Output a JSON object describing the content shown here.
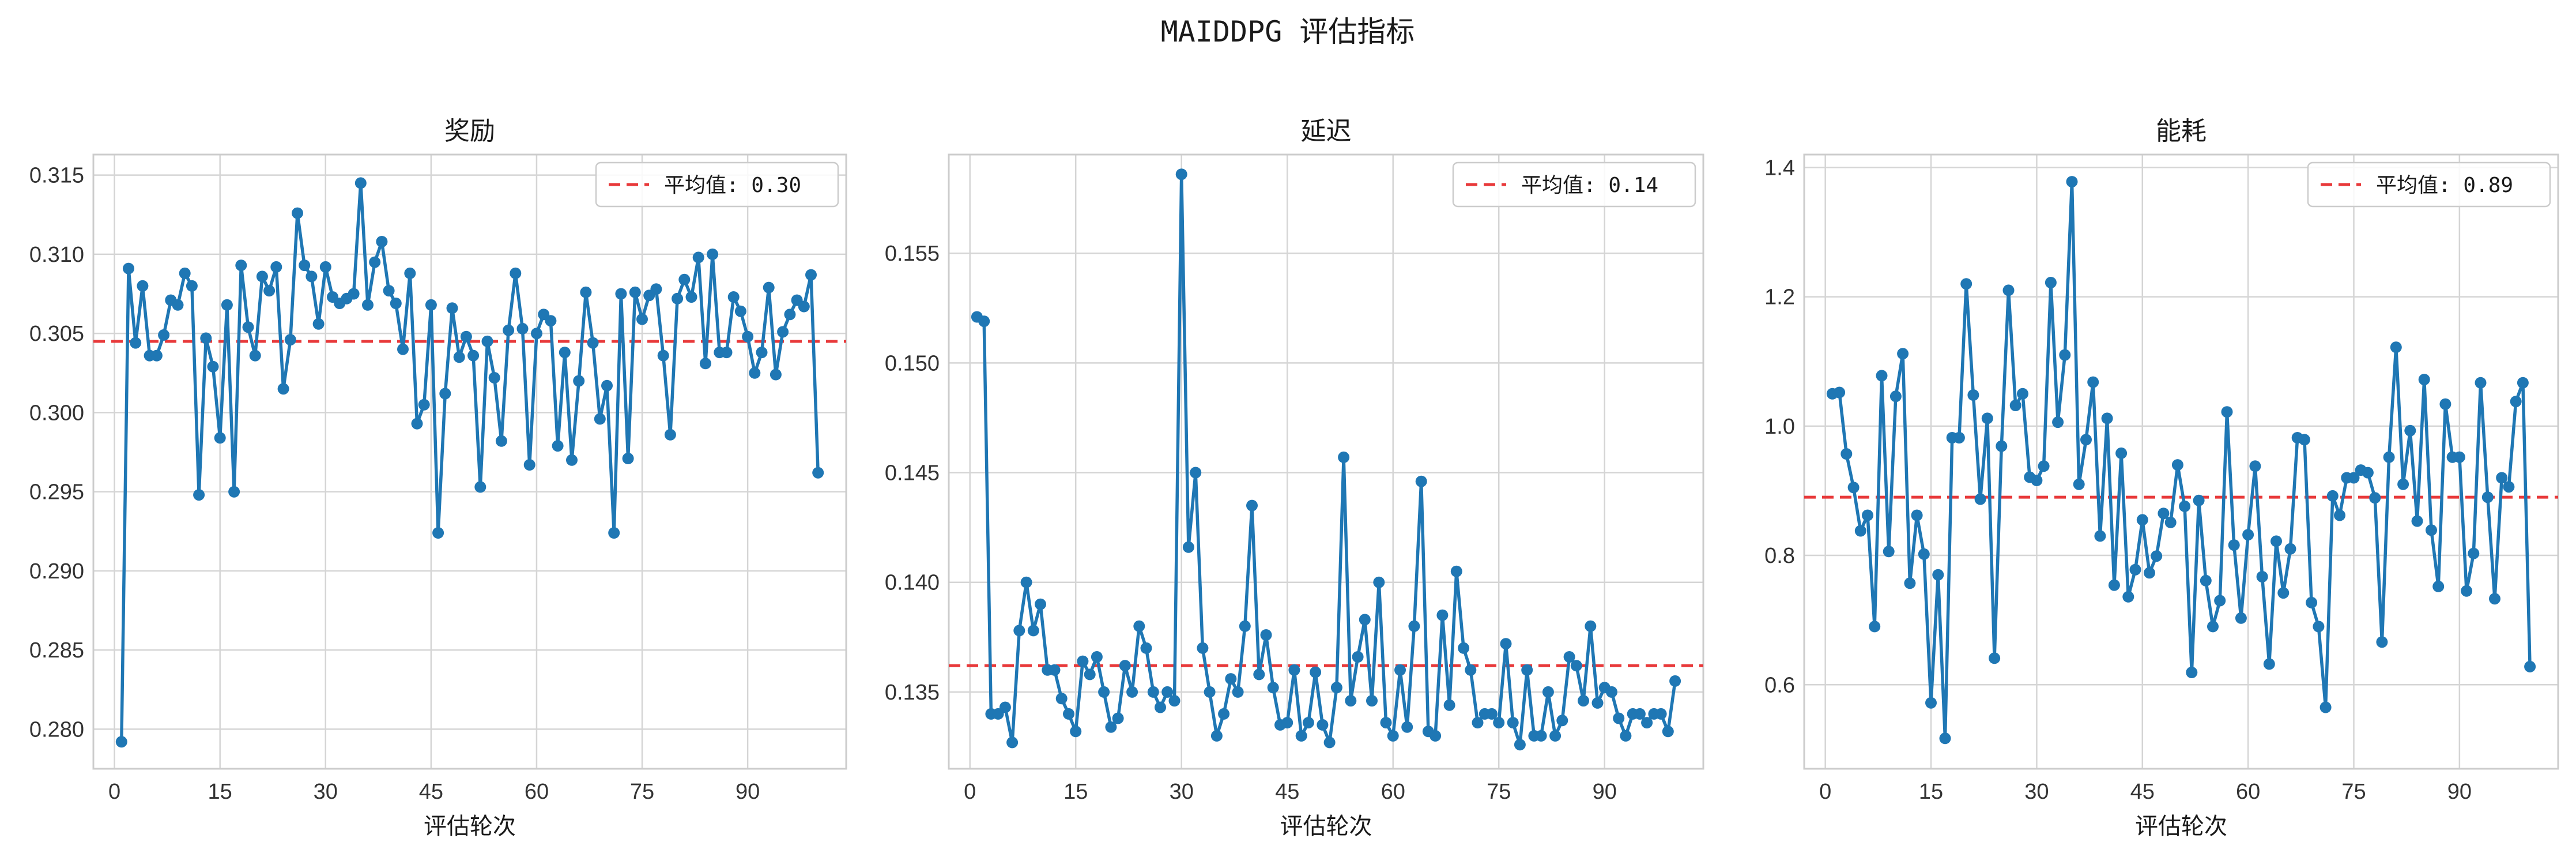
{
  "figure": {
    "suptitle": "MAIDDPG 评估指标"
  },
  "colors": {
    "line": "#1f77b4",
    "mean": "#e8393a",
    "grid": "#d5d5d5",
    "frame": "#cccccc"
  },
  "chart_data": [
    {
      "type": "line",
      "title": "奖励",
      "xlabel": "评估轮次",
      "ylabel": "",
      "xlim": [
        -3,
        104
      ],
      "ylim": [
        0.2775,
        0.3163
      ],
      "xticks": [
        0,
        15,
        30,
        45,
        60,
        75,
        90
      ],
      "yticks": [
        0.28,
        0.285,
        0.29,
        0.295,
        0.3,
        0.305,
        0.31,
        0.315
      ],
      "ytick_decimals": 3,
      "mean_value": 0.3045,
      "legend_label": "平均值: 0.30",
      "legend_position": "top-right",
      "grid": true,
      "series": [
        {
          "x_start": 1,
          "values": [
            0.2792,
            0.3091,
            0.3044,
            0.308,
            0.3036,
            0.3036,
            0.3049,
            0.3071,
            0.3068,
            0.3088,
            0.308,
            0.2948,
            0.3047,
            0.3029,
            0.2984,
            0.3068,
            0.295,
            0.3093,
            0.3054,
            0.3036,
            0.3086,
            0.3077,
            0.3092,
            0.3015,
            0.3046,
            0.3126,
            0.3093,
            0.3086,
            0.3056,
            0.3092,
            0.3073,
            0.3069,
            0.3072,
            0.3075,
            0.3145,
            0.3068,
            0.3095,
            0.3108,
            0.3077,
            0.3069,
            0.304,
            0.3088,
            0.2993,
            0.3005,
            0.3068,
            0.2924,
            0.3012,
            0.3066,
            0.3035,
            0.3048,
            0.3036,
            0.2953,
            0.3045,
            0.3022,
            0.2982,
            0.3052,
            0.3088,
            0.3053,
            0.2967,
            0.305,
            0.3062,
            0.3058,
            0.2979,
            0.3038,
            0.297,
            0.302,
            0.3076,
            0.3044,
            0.2996,
            0.3017,
            0.2924,
            0.3075,
            0.2971,
            0.3076,
            0.3059,
            0.3074,
            0.3078,
            0.3036,
            0.2986,
            0.3072,
            0.3084,
            0.3073,
            0.3098,
            0.3031,
            0.31,
            0.3038,
            0.3038,
            0.3073,
            0.3064,
            0.3048,
            0.3025,
            0.3038,
            0.3079,
            0.3024,
            0.3051,
            0.3062,
            0.3071,
            0.3067,
            0.3087,
            0.2962
          ]
        }
      ]
    },
    {
      "type": "line",
      "title": "延迟",
      "xlabel": "评估轮次",
      "ylabel": "",
      "xlim": [
        -3,
        104
      ],
      "ylim": [
        0.1315,
        0.1595
      ],
      "xticks": [
        0,
        15,
        30,
        45,
        60,
        75,
        90
      ],
      "yticks": [
        0.135,
        0.14,
        0.145,
        0.15,
        0.155
      ],
      "ytick_decimals": 3,
      "mean_value": 0.1362,
      "legend_label": "平均值: 0.14",
      "legend_position": "top-right",
      "grid": true,
      "series": [
        {
          "x_start": 1,
          "values": [
            0.1521,
            0.1519,
            0.134,
            0.134,
            0.1343,
            0.1327,
            0.1378,
            0.14,
            0.1378,
            0.139,
            0.136,
            0.136,
            0.1347,
            0.134,
            0.1332,
            0.1364,
            0.1358,
            0.1366,
            0.135,
            0.1334,
            0.1338,
            0.1362,
            0.135,
            0.138,
            0.137,
            0.135,
            0.1343,
            0.135,
            0.1346,
            0.1586,
            0.1416,
            0.145,
            0.137,
            0.135,
            0.133,
            0.134,
            0.1356,
            0.135,
            0.138,
            0.1435,
            0.1358,
            0.1376,
            0.1352,
            0.1335,
            0.1336,
            0.136,
            0.133,
            0.1336,
            0.1359,
            0.1335,
            0.1327,
            0.1352,
            0.1457,
            0.1346,
            0.1366,
            0.1383,
            0.1346,
            0.14,
            0.1336,
            0.133,
            0.136,
            0.1334,
            0.138,
            0.1446,
            0.1332,
            0.133,
            0.1385,
            0.1344,
            0.1405,
            0.137,
            0.136,
            0.1336,
            0.134,
            0.134,
            0.1336,
            0.1372,
            0.1336,
            0.1326,
            0.136,
            0.133,
            0.133,
            0.135,
            0.133,
            0.1337,
            0.1366,
            0.1362,
            0.1346,
            0.138,
            0.1345,
            0.1352,
            0.135,
            0.1338,
            0.133,
            0.134,
            0.134,
            0.1336,
            0.134,
            0.134,
            0.1332,
            0.1355
          ]
        }
      ]
    },
    {
      "type": "line",
      "title": "能耗",
      "xlabel": "评估轮次",
      "ylabel": "",
      "xlim": [
        -3,
        104
      ],
      "ylim": [
        0.47,
        1.42
      ],
      "xticks": [
        0,
        15,
        30,
        45,
        60,
        75,
        90
      ],
      "yticks": [
        0.6,
        0.8,
        1.0,
        1.2,
        1.4
      ],
      "ytick_decimals": 1,
      "mean_value": 0.89,
      "legend_label": "平均值: 0.89",
      "legend_position": "top-right",
      "grid": true,
      "series": [
        {
          "x_start": 1,
          "values": [
            1.05,
            1.052,
            0.957,
            0.905,
            0.838,
            0.862,
            0.69,
            1.078,
            0.806,
            1.046,
            1.112,
            0.757,
            0.862,
            0.802,
            0.572,
            0.77,
            0.517,
            0.982,
            0.982,
            1.22,
            1.048,
            0.887,
            1.012,
            0.641,
            0.969,
            1.21,
            1.032,
            1.05,
            0.921,
            0.916,
            0.938,
            1.222,
            1.006,
            1.11,
            1.378,
            0.91,
            0.979,
            1.068,
            0.83,
            1.012,
            0.754,
            0.958,
            0.736,
            0.778,
            0.855,
            0.773,
            0.799,
            0.865,
            0.851,
            0.94,
            0.876,
            0.619,
            0.885,
            0.761,
            0.69,
            0.73,
            1.022,
            0.816,
            0.703,
            0.832,
            0.938,
            0.767,
            0.632,
            0.822,
            0.742,
            0.81,
            0.982,
            0.979,
            0.727,
            0.69,
            0.565,
            0.892,
            0.862,
            0.92,
            0.92,
            0.932,
            0.928,
            0.889,
            0.666,
            0.952,
            1.122,
            0.91,
            0.993,
            0.853,
            1.072,
            0.839,
            0.752,
            1.034,
            0.952,
            0.952,
            0.745,
            0.803,
            1.067,
            0.89,
            0.733,
            0.92,
            0.906,
            1.038,
            1.067,
            0.628
          ]
        }
      ]
    }
  ]
}
